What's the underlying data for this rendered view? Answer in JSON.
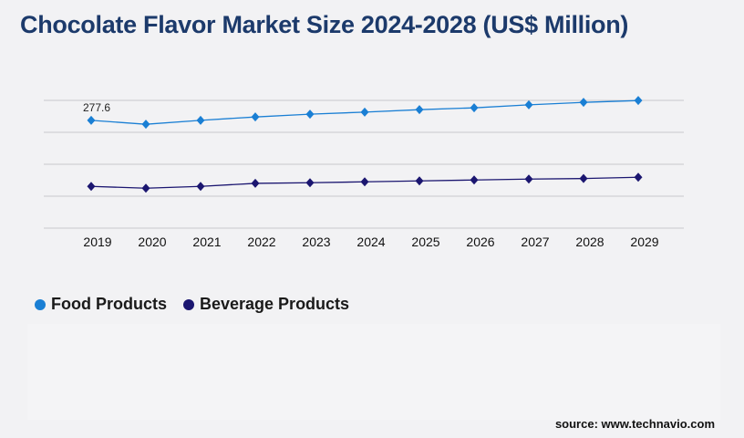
{
  "chart_data": {
    "type": "line",
    "title": "Chocolate Flavor Market Size 2024-2028 (US$ Million)",
    "categories": [
      "2019",
      "2020",
      "2021",
      "2022",
      "2023",
      "2024",
      "2025",
      "2026",
      "2027",
      "2028",
      "2029"
    ],
    "series": [
      {
        "name": "Food Products",
        "color": "#1a7fd4",
        "values": [
          277.6,
          267.5,
          277.6,
          286.3,
          293.4,
          298.8,
          305.1,
          309.8,
          317.6,
          323.9,
          328.6
        ]
      },
      {
        "name": "Beverage Products",
        "color": "#1b1670",
        "values": [
          107.5,
          102.8,
          107.5,
          115.3,
          116.9,
          119.3,
          121.6,
          124.0,
          126.3,
          127.7,
          131.0
        ]
      }
    ],
    "data_labels": [
      {
        "series": "Food Products",
        "category": "2019",
        "text": "277.6"
      }
    ],
    "ylim": [
      0,
      329
    ],
    "grid": true,
    "legend_position": "bottom-left"
  },
  "source": "source: www.technavio.com"
}
